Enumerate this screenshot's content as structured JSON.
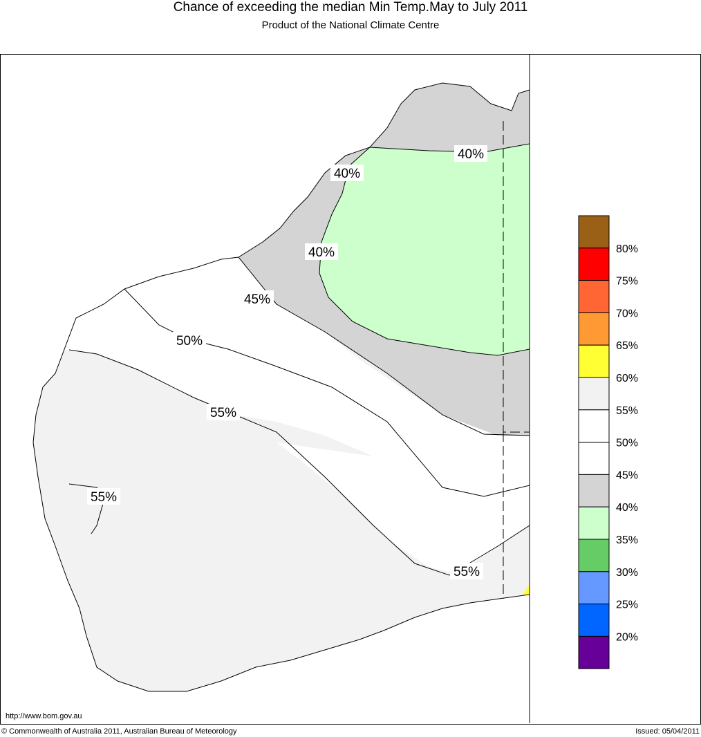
{
  "header": {
    "title": "Chance of exceeding the median Min Temp.May to July 2011",
    "subtitle": "Product of the National Climate Centre"
  },
  "map": {
    "region": "Western Australia",
    "contour_labels": [
      {
        "id": "c40-north",
        "text": "40%"
      },
      {
        "id": "c40-west",
        "text": "40%"
      },
      {
        "id": "c40-mid",
        "text": "40%"
      },
      {
        "id": "c45",
        "text": "45%"
      },
      {
        "id": "c50",
        "text": "50%"
      },
      {
        "id": "c55-mid",
        "text": "55%"
      },
      {
        "id": "c55-coast",
        "text": "55%"
      },
      {
        "id": "c55-south",
        "text": "55%"
      }
    ],
    "zone_colors": {
      "35_40": "#ccffcc",
      "40_45": "#d4d4d4",
      "45_55": "#ffffff",
      "55_60": "#f2f2f2",
      "60_65": "#ffff33"
    }
  },
  "legend": {
    "bins": [
      {
        "color": "#996016"
      },
      {
        "color": "#ff0000"
      },
      {
        "color": "#ff6633"
      },
      {
        "color": "#ff9933"
      },
      {
        "color": "#ffff33"
      },
      {
        "color": "#f2f2f2"
      },
      {
        "color": "#ffffff"
      },
      {
        "color": "#ffffff"
      },
      {
        "color": "#d4d4d4"
      },
      {
        "color": "#ccffcc"
      },
      {
        "color": "#66cc66"
      },
      {
        "color": "#6699ff"
      },
      {
        "color": "#0066ff"
      },
      {
        "color": "#660099"
      }
    ],
    "labels": [
      "80%",
      "75%",
      "70%",
      "65%",
      "60%",
      "55%",
      "50%",
      "45%",
      "40%",
      "35%",
      "30%",
      "25%",
      "20%"
    ]
  },
  "footer": {
    "url": "http://www.bom.gov.au",
    "copyright": "© Commonwealth of Australia 2011, Australian Bureau of Meteorology",
    "issued": "Issued: 05/04/2011"
  }
}
